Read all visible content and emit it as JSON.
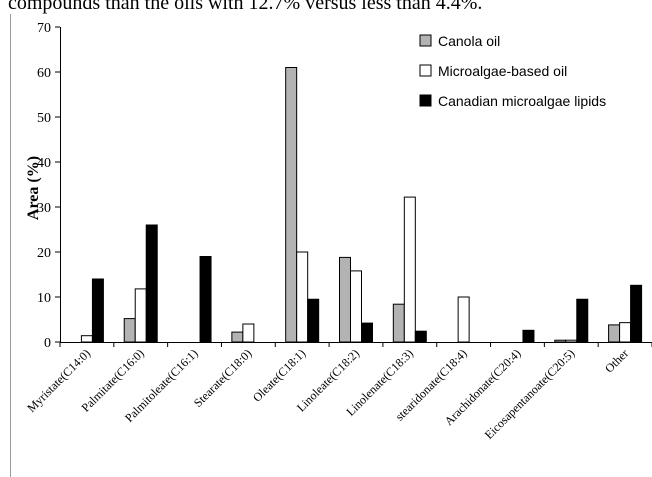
{
  "top_text": "compounds than the oils with 12.7% versus less than 4.4%.",
  "chart_data": {
    "type": "bar",
    "ylabel": "Area (%)",
    "ylim": [
      0,
      70
    ],
    "yticks": [
      0,
      10,
      20,
      30,
      40,
      50,
      60,
      70
    ],
    "grid": false,
    "legend_position": "top-right",
    "categories": [
      "Myristate(C14:0)",
      "Palmitate(C16:0)",
      "Palmitoleate(C16:1)",
      "Stearate(C18:0)",
      "Oleate(C18:1)",
      "Linoleate(C18:2)",
      "Linolenate(C18:3)",
      "stearidonate(C18:4)",
      "Arachidonate(C20:4)",
      "Eicosapentanoate(C20:5)",
      "Other"
    ],
    "series": [
      {
        "name": "Canola oil",
        "color": "#b3b3b3",
        "values": [
          0,
          5.2,
          0,
          2.2,
          61,
          18.8,
          8.4,
          0,
          0,
          0.4,
          3.8
        ]
      },
      {
        "name": "Microalgae-based oil",
        "color": "#ffffff",
        "values": [
          1.4,
          11.8,
          0,
          4,
          20,
          15.8,
          32.2,
          10,
          0,
          0.4,
          4.3
        ]
      },
      {
        "name": "Canadian microalgae lipids",
        "color": "#000000",
        "values": [
          14,
          26,
          19,
          0,
          9.5,
          4.2,
          2.4,
          0,
          2.6,
          9.5,
          12.6
        ]
      }
    ]
  }
}
